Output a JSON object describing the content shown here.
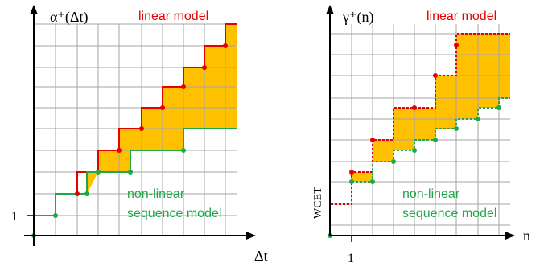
{
  "colors": {
    "grid": "#a6a6a6",
    "axis": "#000000",
    "fill": "#ffc000",
    "linear": "#e60000",
    "nonlinear": "#1fa84a",
    "label_linear": "#e60000",
    "label_nonlinear": "#1fa84a"
  },
  "left": {
    "y_axis_label": "α⁺(Δt)",
    "x_axis_label": "Δt",
    "y_tick_label": "1",
    "linear_label": "linear model",
    "nonlinear_label_line1": "non-linear",
    "nonlinear_label_line2": "sequence model"
  },
  "right": {
    "y_axis_label": "γ⁺(n)",
    "x_axis_label": "n",
    "y_tick_label": "WCET",
    "x_tick_label": "1",
    "linear_label": "linear model",
    "nonlinear_label_line1": "non-linear",
    "nonlinear_label_line2": "sequence model"
  }
}
